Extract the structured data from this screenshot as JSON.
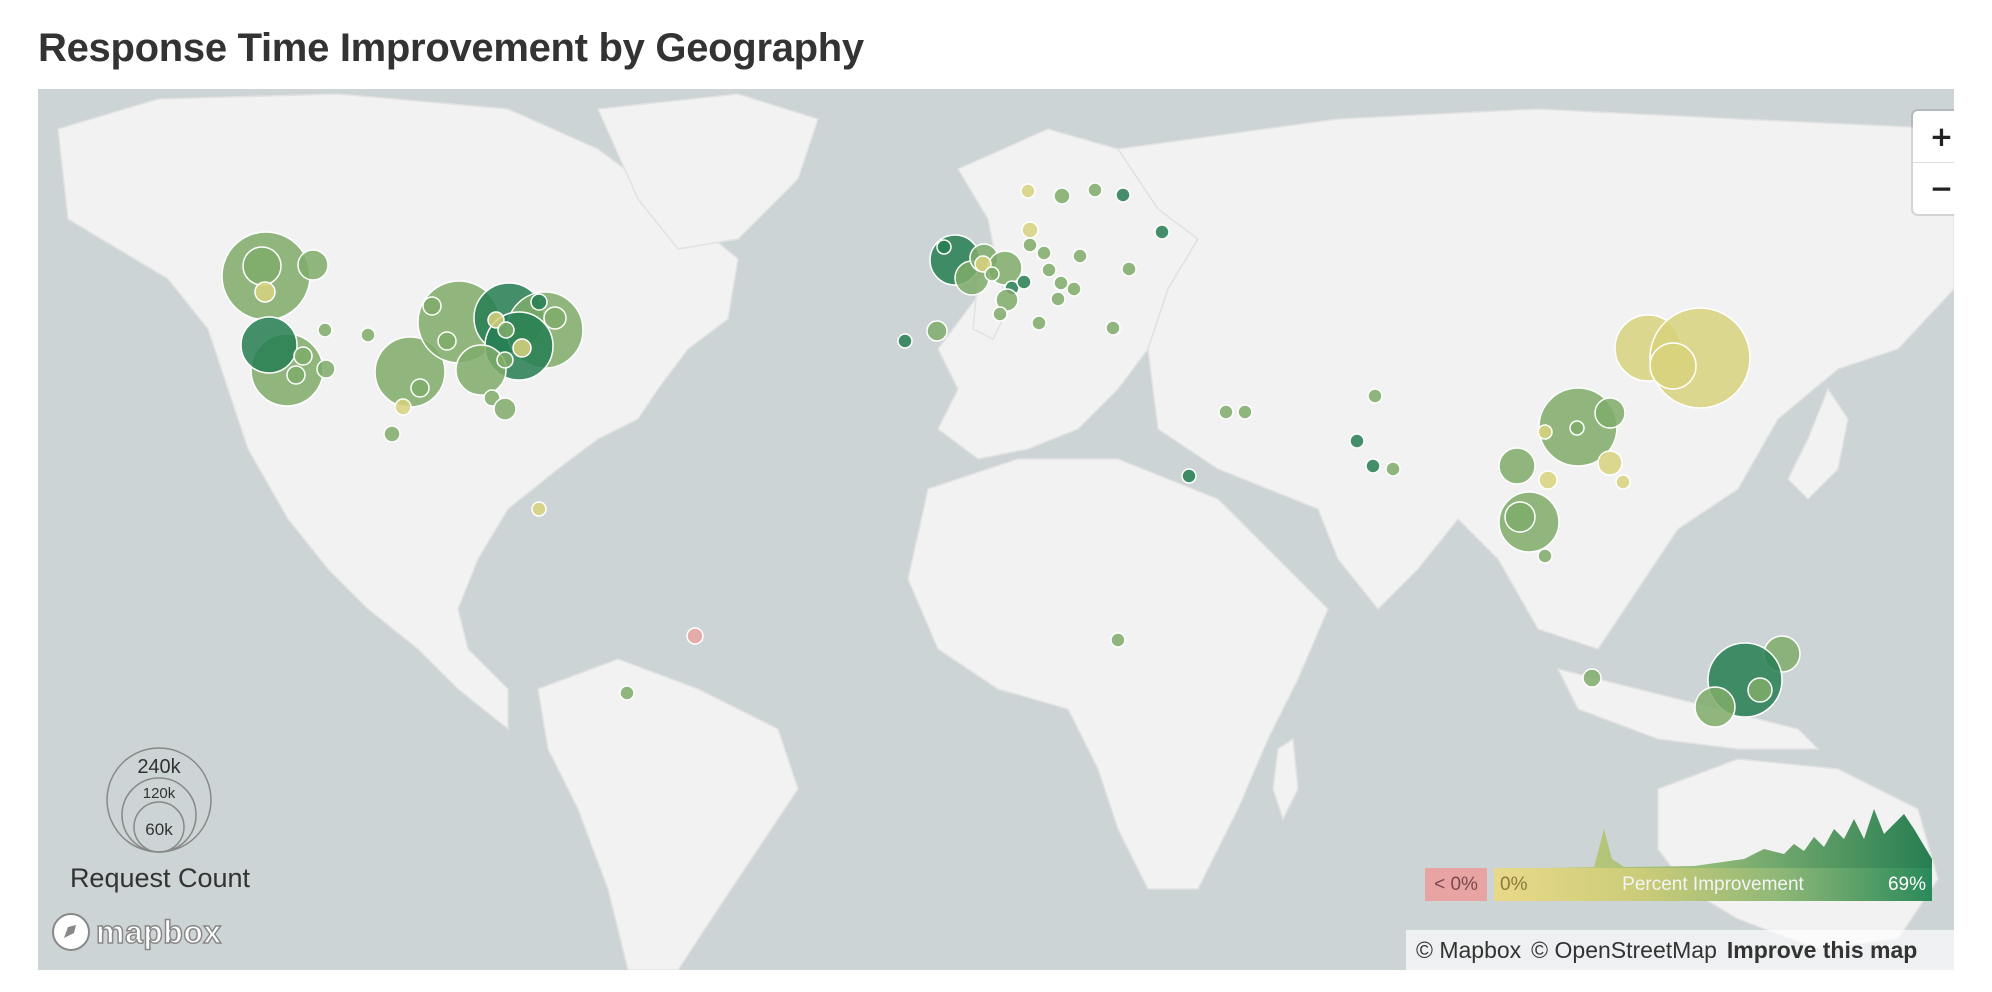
{
  "title": "Response Time Improvement by Geography",
  "zoom": {
    "in_label": "+",
    "out_label": "−"
  },
  "size_legend": {
    "title": "Request Count",
    "levels": [
      "240k",
      "120k",
      "60k"
    ]
  },
  "color_legend": {
    "negative_label": "< 0%",
    "min_label": "0%",
    "title": "Percent Improvement",
    "max_label": "69%"
  },
  "logo": {
    "text": "mapbox",
    "icon": "mapbox-logo-icon"
  },
  "attribution": {
    "mapbox": "© Mapbox",
    "osm": "© OpenStreetMap",
    "improve": "Improve this map"
  },
  "colors": {
    "ocean": "#cdd4d6",
    "land": "#f2f2f2",
    "low": "#d8d27e",
    "mid": "#7fac6a",
    "high": "#267e52",
    "negative": "#e8a3a3"
  }
}
